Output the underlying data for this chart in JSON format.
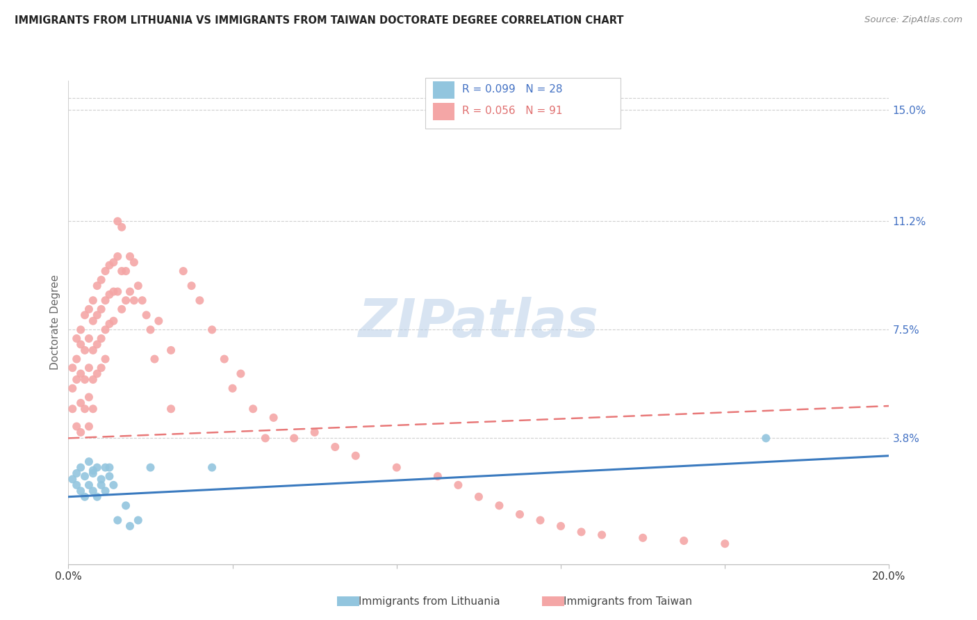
{
  "title": "IMMIGRANTS FROM LITHUANIA VS IMMIGRANTS FROM TAIWAN DOCTORATE DEGREE CORRELATION CHART",
  "source": "Source: ZipAtlas.com",
  "ylabel": "Doctorate Degree",
  "xlim": [
    0.0,
    0.2
  ],
  "ylim": [
    -0.005,
    0.16
  ],
  "y_tick_vals_right": [
    0.15,
    0.112,
    0.075,
    0.038
  ],
  "y_tick_labels_right": [
    "15.0%",
    "11.2%",
    "7.5%",
    "3.8%"
  ],
  "color_lithuania": "#92c5de",
  "color_taiwan": "#f4a6a6",
  "color_lithuania_line": "#3a7abf",
  "color_taiwan_line": "#e87878",
  "watermark": "ZIPatlas",
  "background_color": "#ffffff",
  "legend_r1": "R = 0.099",
  "legend_n1": "N = 28",
  "legend_r2": "R = 0.056",
  "legend_n2": "N = 91",
  "lith_x": [
    0.001,
    0.002,
    0.002,
    0.003,
    0.003,
    0.004,
    0.004,
    0.005,
    0.005,
    0.006,
    0.006,
    0.007,
    0.007,
    0.008,
    0.008,
    0.009,
    0.01,
    0.01,
    0.011,
    0.012,
    0.014,
    0.015,
    0.017,
    0.02,
    0.009,
    0.006,
    0.035,
    0.17
  ],
  "lith_y": [
    0.024,
    0.022,
    0.026,
    0.02,
    0.028,
    0.018,
    0.025,
    0.022,
    0.03,
    0.02,
    0.026,
    0.018,
    0.028,
    0.022,
    0.024,
    0.02,
    0.025,
    0.028,
    0.022,
    0.01,
    0.015,
    0.008,
    0.01,
    0.028,
    0.028,
    0.027,
    0.028,
    0.038
  ],
  "taiwan_x": [
    0.001,
    0.001,
    0.001,
    0.002,
    0.002,
    0.002,
    0.002,
    0.003,
    0.003,
    0.003,
    0.003,
    0.003,
    0.004,
    0.004,
    0.004,
    0.004,
    0.005,
    0.005,
    0.005,
    0.005,
    0.005,
    0.006,
    0.006,
    0.006,
    0.006,
    0.006,
    0.007,
    0.007,
    0.007,
    0.007,
    0.008,
    0.008,
    0.008,
    0.008,
    0.009,
    0.009,
    0.009,
    0.009,
    0.01,
    0.01,
    0.01,
    0.011,
    0.011,
    0.011,
    0.012,
    0.012,
    0.012,
    0.013,
    0.013,
    0.013,
    0.014,
    0.014,
    0.015,
    0.015,
    0.016,
    0.016,
    0.017,
    0.018,
    0.019,
    0.02,
    0.021,
    0.022,
    0.025,
    0.025,
    0.028,
    0.03,
    0.032,
    0.035,
    0.038,
    0.04,
    0.042,
    0.045,
    0.048,
    0.05,
    0.055,
    0.06,
    0.065,
    0.07,
    0.08,
    0.09,
    0.095,
    0.1,
    0.105,
    0.11,
    0.115,
    0.12,
    0.125,
    0.13,
    0.14,
    0.15,
    0.16
  ],
  "taiwan_y": [
    0.055,
    0.062,
    0.048,
    0.065,
    0.058,
    0.072,
    0.042,
    0.07,
    0.06,
    0.05,
    0.04,
    0.075,
    0.068,
    0.058,
    0.048,
    0.08,
    0.082,
    0.072,
    0.062,
    0.052,
    0.042,
    0.085,
    0.078,
    0.068,
    0.058,
    0.048,
    0.09,
    0.08,
    0.07,
    0.06,
    0.092,
    0.082,
    0.072,
    0.062,
    0.095,
    0.085,
    0.075,
    0.065,
    0.097,
    0.087,
    0.077,
    0.098,
    0.088,
    0.078,
    0.112,
    0.1,
    0.088,
    0.11,
    0.095,
    0.082,
    0.095,
    0.085,
    0.1,
    0.088,
    0.098,
    0.085,
    0.09,
    0.085,
    0.08,
    0.075,
    0.065,
    0.078,
    0.068,
    0.048,
    0.095,
    0.09,
    0.085,
    0.075,
    0.065,
    0.055,
    0.06,
    0.048,
    0.038,
    0.045,
    0.038,
    0.04,
    0.035,
    0.032,
    0.028,
    0.025,
    0.022,
    0.018,
    0.015,
    0.012,
    0.01,
    0.008,
    0.006,
    0.005,
    0.004,
    0.003,
    0.002
  ]
}
